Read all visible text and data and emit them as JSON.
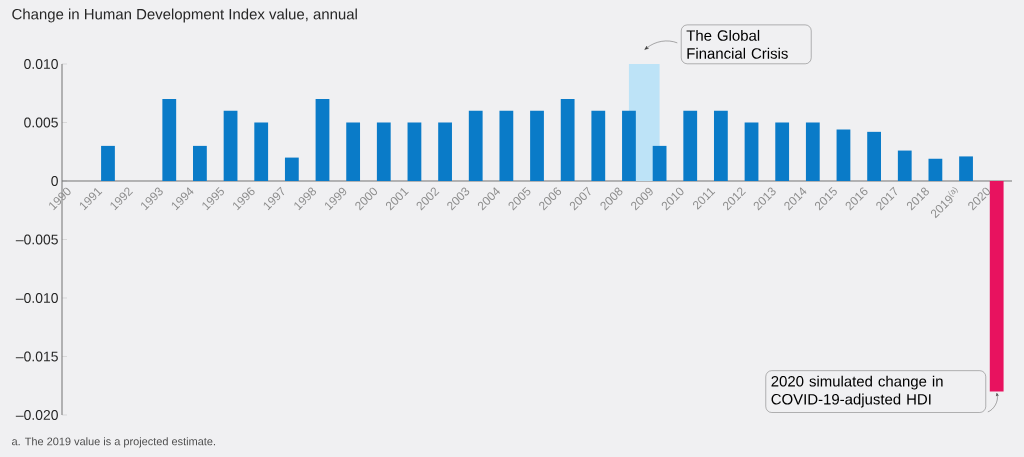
{
  "chart_data": {
    "type": "bar",
    "title": "Change in Human Development Index value, annual",
    "categories": [
      "1990",
      "1991",
      "1992",
      "1993",
      "1994",
      "1995",
      "1996",
      "1997",
      "1998",
      "1999",
      "2000",
      "2001",
      "2002",
      "2003",
      "2004",
      "2005",
      "2006",
      "2007",
      "2008",
      "2009",
      "2010",
      "2011",
      "2012",
      "2013",
      "2014",
      "2015",
      "2016",
      "2017",
      "2018",
      "2019$^{(a)}$",
      "2020"
    ],
    "values": [
      0,
      0.003,
      0,
      0.007,
      0.003,
      0.006,
      0.005,
      0.002,
      0.007,
      0.005,
      0.005,
      0.005,
      0.005,
      0.006,
      0.006,
      0.006,
      0.007,
      0.006,
      0.006,
      0.003,
      0.006,
      0.006,
      0.005,
      0.005,
      0.005,
      0.0044,
      0.0042,
      0.0026,
      0.0019,
      0.0021,
      -0.018
    ],
    "colors": [
      "#0a7bc8",
      "#0a7bc8",
      "#0a7bc8",
      "#0a7bc8",
      "#0a7bc8",
      "#0a7bc8",
      "#0a7bc8",
      "#0a7bc8",
      "#0a7bc8",
      "#0a7bc8",
      "#0a7bc8",
      "#0a7bc8",
      "#0a7bc8",
      "#0a7bc8",
      "#0a7bc8",
      "#0a7bc8",
      "#0a7bc8",
      "#0a7bc8",
      "#0a7bc8",
      "#0a7bc8",
      "#0a7bc8",
      "#0a7bc8",
      "#0a7bc8",
      "#0a7bc8",
      "#0a7bc8",
      "#0a7bc8",
      "#0a7bc8",
      "#0a7bc8",
      "#0a7bc8",
      "#0a7bc8",
      "#e8125f"
    ],
    "ylim": [
      -0.02,
      0.01
    ],
    "yticks": [
      {
        "value": 0.01,
        "label": "0.010"
      },
      {
        "value": 0.005,
        "label": "0.005"
      },
      0,
      {
        "value": -0.005,
        "label": "–0.005"
      },
      {
        "value": -0.01,
        "label": "–0.010"
      },
      {
        "value": -0.015,
        "label": "–0.015"
      },
      {
        "value": -0.02,
        "label": "–0.020"
      }
    ],
    "bands": [
      {
        "axis": "x",
        "from": "2008",
        "to": "2009",
        "label": "The Global Financial Crisis",
        "color": "#bde3f7"
      }
    ],
    "annotations": [
      {
        "text": "2020 simulated change in COVID-19-adjusted HDI",
        "x": "2020",
        "y": -0.018
      },
      "a. The 2019 value is a projected estimate."
    ],
    "grid": false
  }
}
